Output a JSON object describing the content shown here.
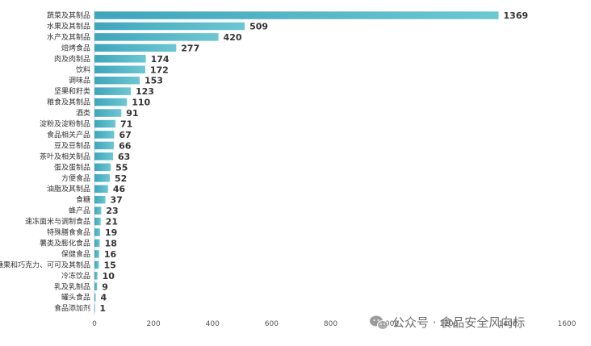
{
  "chart_data": {
    "type": "bar",
    "orientation": "horizontal",
    "categories": [
      "蔬菜及其制品",
      "水果及其制品",
      "水产及其制品",
      "焙烤食品",
      "肉及肉制品",
      "饮料",
      "调味品",
      "坚果和籽类",
      "粮食及其制品",
      "酒类",
      "淀粉及淀粉制品",
      "食品相关产品",
      "豆及豆制品",
      "茶叶及相关制品",
      "蛋及蛋制品",
      "方便食品",
      "油脂及其制品",
      "食糖",
      "蜂产品",
      "速冻面米与调制食品",
      "特殊膳食食品",
      "薯类及膨化食品",
      "保健食品",
      "糖果和巧克力、可可及其制品",
      "冷冻饮品",
      "乳及乳制品",
      "罐头食品",
      "食品添加剂"
    ],
    "values": [
      1369,
      509,
      420,
      277,
      174,
      172,
      153,
      123,
      110,
      91,
      71,
      67,
      66,
      63,
      55,
      52,
      46,
      37,
      23,
      21,
      19,
      18,
      16,
      15,
      10,
      9,
      4,
      1
    ],
    "xlim": [
      0,
      1600
    ],
    "xticks": [
      0,
      200,
      400,
      600,
      800,
      1000,
      1200,
      1400,
      1600
    ],
    "bar_color_start": "#3fa5bb",
    "bar_color_end": "#6cc7d2",
    "title": "",
    "xlabel": "",
    "ylabel": "",
    "grid": false
  },
  "watermark": {
    "text": "公众号 · 食品安全风向标",
    "icon": "wechat-icon"
  }
}
